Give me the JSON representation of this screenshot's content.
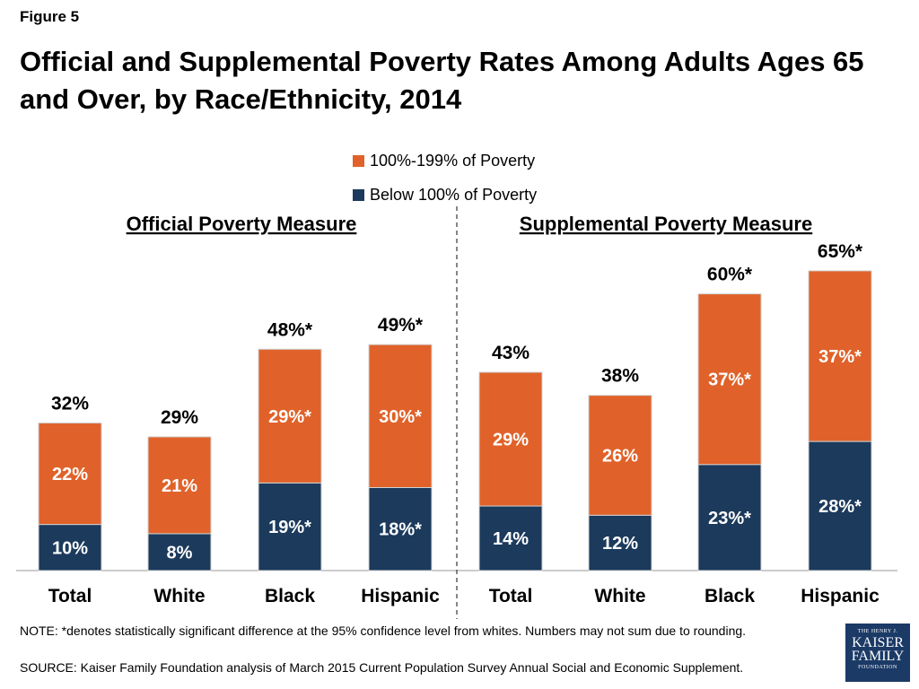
{
  "figure_label": "Figure 5",
  "title": "Official and Supplemental Poverty Rates Among Adults Ages 65 and Over, by Race/Ethnicity, 2014",
  "colors": {
    "upper": "#e0622a",
    "lower": "#1b3a5c",
    "axis": "#999999"
  },
  "legend": [
    {
      "label": "100%-199% of Poverty",
      "color": "#e0622a"
    },
    {
      "label": "Below 100% of Poverty",
      "color": "#1b3a5c"
    }
  ],
  "note": "NOTE: *denotes statistically significant difference at the 95% confidence level from whites. Numbers may not sum due to rounding.",
  "source": "SOURCE: Kaiser Family Foundation analysis of March 2015 Current Population Survey Annual Social and Economic Supplement.",
  "logo": {
    "line1": "THE HENRY J.",
    "line2": "KAISER",
    "line3": "FAMILY",
    "line4": "FOUNDATION"
  },
  "chart_data": {
    "type": "bar",
    "stacked": true,
    "groups": [
      "Official Poverty Measure",
      "Supplemental Poverty Measure"
    ],
    "categories": [
      "Total",
      "White",
      "Black",
      "Hispanic",
      "Total",
      "White",
      "Black",
      "Hispanic"
    ],
    "group_index": [
      0,
      0,
      0,
      0,
      1,
      1,
      1,
      1
    ],
    "series": [
      {
        "name": "Below 100% of Poverty",
        "values": [
          10,
          8,
          19,
          18,
          14,
          12,
          23,
          28
        ],
        "labels": [
          "10%",
          "8%",
          "19%*",
          "18%*",
          "14%",
          "12%",
          "23%*",
          "28%*"
        ]
      },
      {
        "name": "100%-199% of Poverty",
        "values": [
          22,
          21,
          29,
          30,
          29,
          26,
          37,
          37
        ],
        "labels": [
          "22%",
          "21%",
          "29%*",
          "30%*",
          "29%",
          "26%",
          "37%*",
          "37%*"
        ]
      }
    ],
    "totals": [
      32,
      29,
      48,
      49,
      43,
      38,
      60,
      65
    ],
    "total_labels": [
      "32%",
      "29%",
      "48%*",
      "49%*",
      "43%",
      "38%",
      "60%*",
      "65%*"
    ],
    "ylim": [
      0,
      70
    ],
    "grid": false,
    "legend_position": "top-center"
  }
}
